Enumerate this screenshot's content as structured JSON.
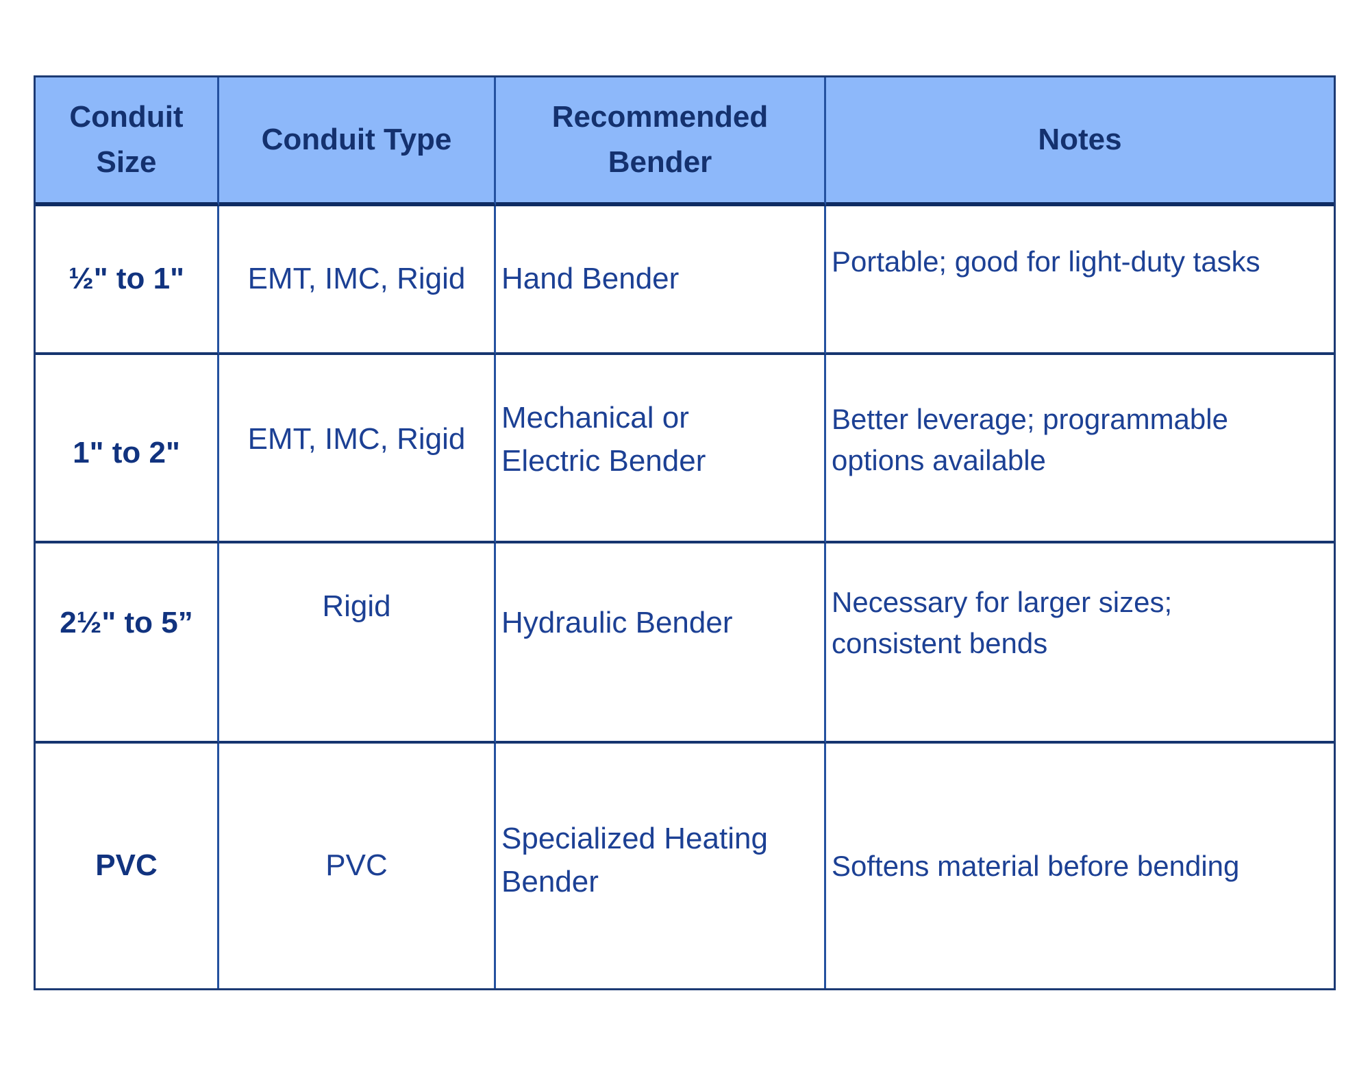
{
  "table": {
    "headers": {
      "size": [
        "Conduit",
        "Size"
      ],
      "type": "Conduit Type",
      "bender": [
        "Recommended",
        "Bender"
      ],
      "notes": "Notes"
    },
    "rows": [
      {
        "size": "½\" to 1\"",
        "type": "EMT, IMC, Rigid",
        "bender": "Hand Bender",
        "notes": "Portable; good for light-duty tasks"
      },
      {
        "size": "1\" to 2\"",
        "type": "EMT, IMC, Rigid",
        "bender": [
          "Mechanical or",
          "Electric Bender"
        ],
        "notes": [
          "Better leverage; programmable",
          "options available"
        ]
      },
      {
        "size": "2½\" to 5”",
        "type": "Rigid",
        "bender": "Hydraulic Bender",
        "notes": [
          "Necessary for larger sizes;",
          "consistent bends"
        ]
      },
      {
        "size": "PVC",
        "type": "PVC",
        "bender": [
          "Specialized Heating",
          "Bender"
        ],
        "notes": "Softens material before bending"
      }
    ],
    "colors": {
      "header_bg": "#8db8fa",
      "border_outer": "#1c3a74",
      "border_vertical": "#24519f",
      "border_row": "#16356f",
      "header_text": "#14316e",
      "body_text": "#1c4094",
      "size_text": "#11337f"
    }
  },
  "chart_data": {
    "type": "table",
    "columns": [
      "Conduit Size",
      "Conduit Type",
      "Recommended Bender",
      "Notes"
    ],
    "rows": [
      [
        "½\" to 1\"",
        "EMT, IMC, Rigid",
        "Hand Bender",
        "Portable; good for light-duty tasks"
      ],
      [
        "1\" to 2\"",
        "EMT, IMC, Rigid",
        "Mechanical or Electric Bender",
        "Better leverage; programmable options available"
      ],
      [
        "2½\" to 5”",
        "Rigid",
        "Hydraulic Bender",
        "Necessary for larger sizes; consistent bends"
      ],
      [
        "PVC",
        "PVC",
        "Specialized Heating Bender",
        "Softens material before bending"
      ]
    ]
  }
}
